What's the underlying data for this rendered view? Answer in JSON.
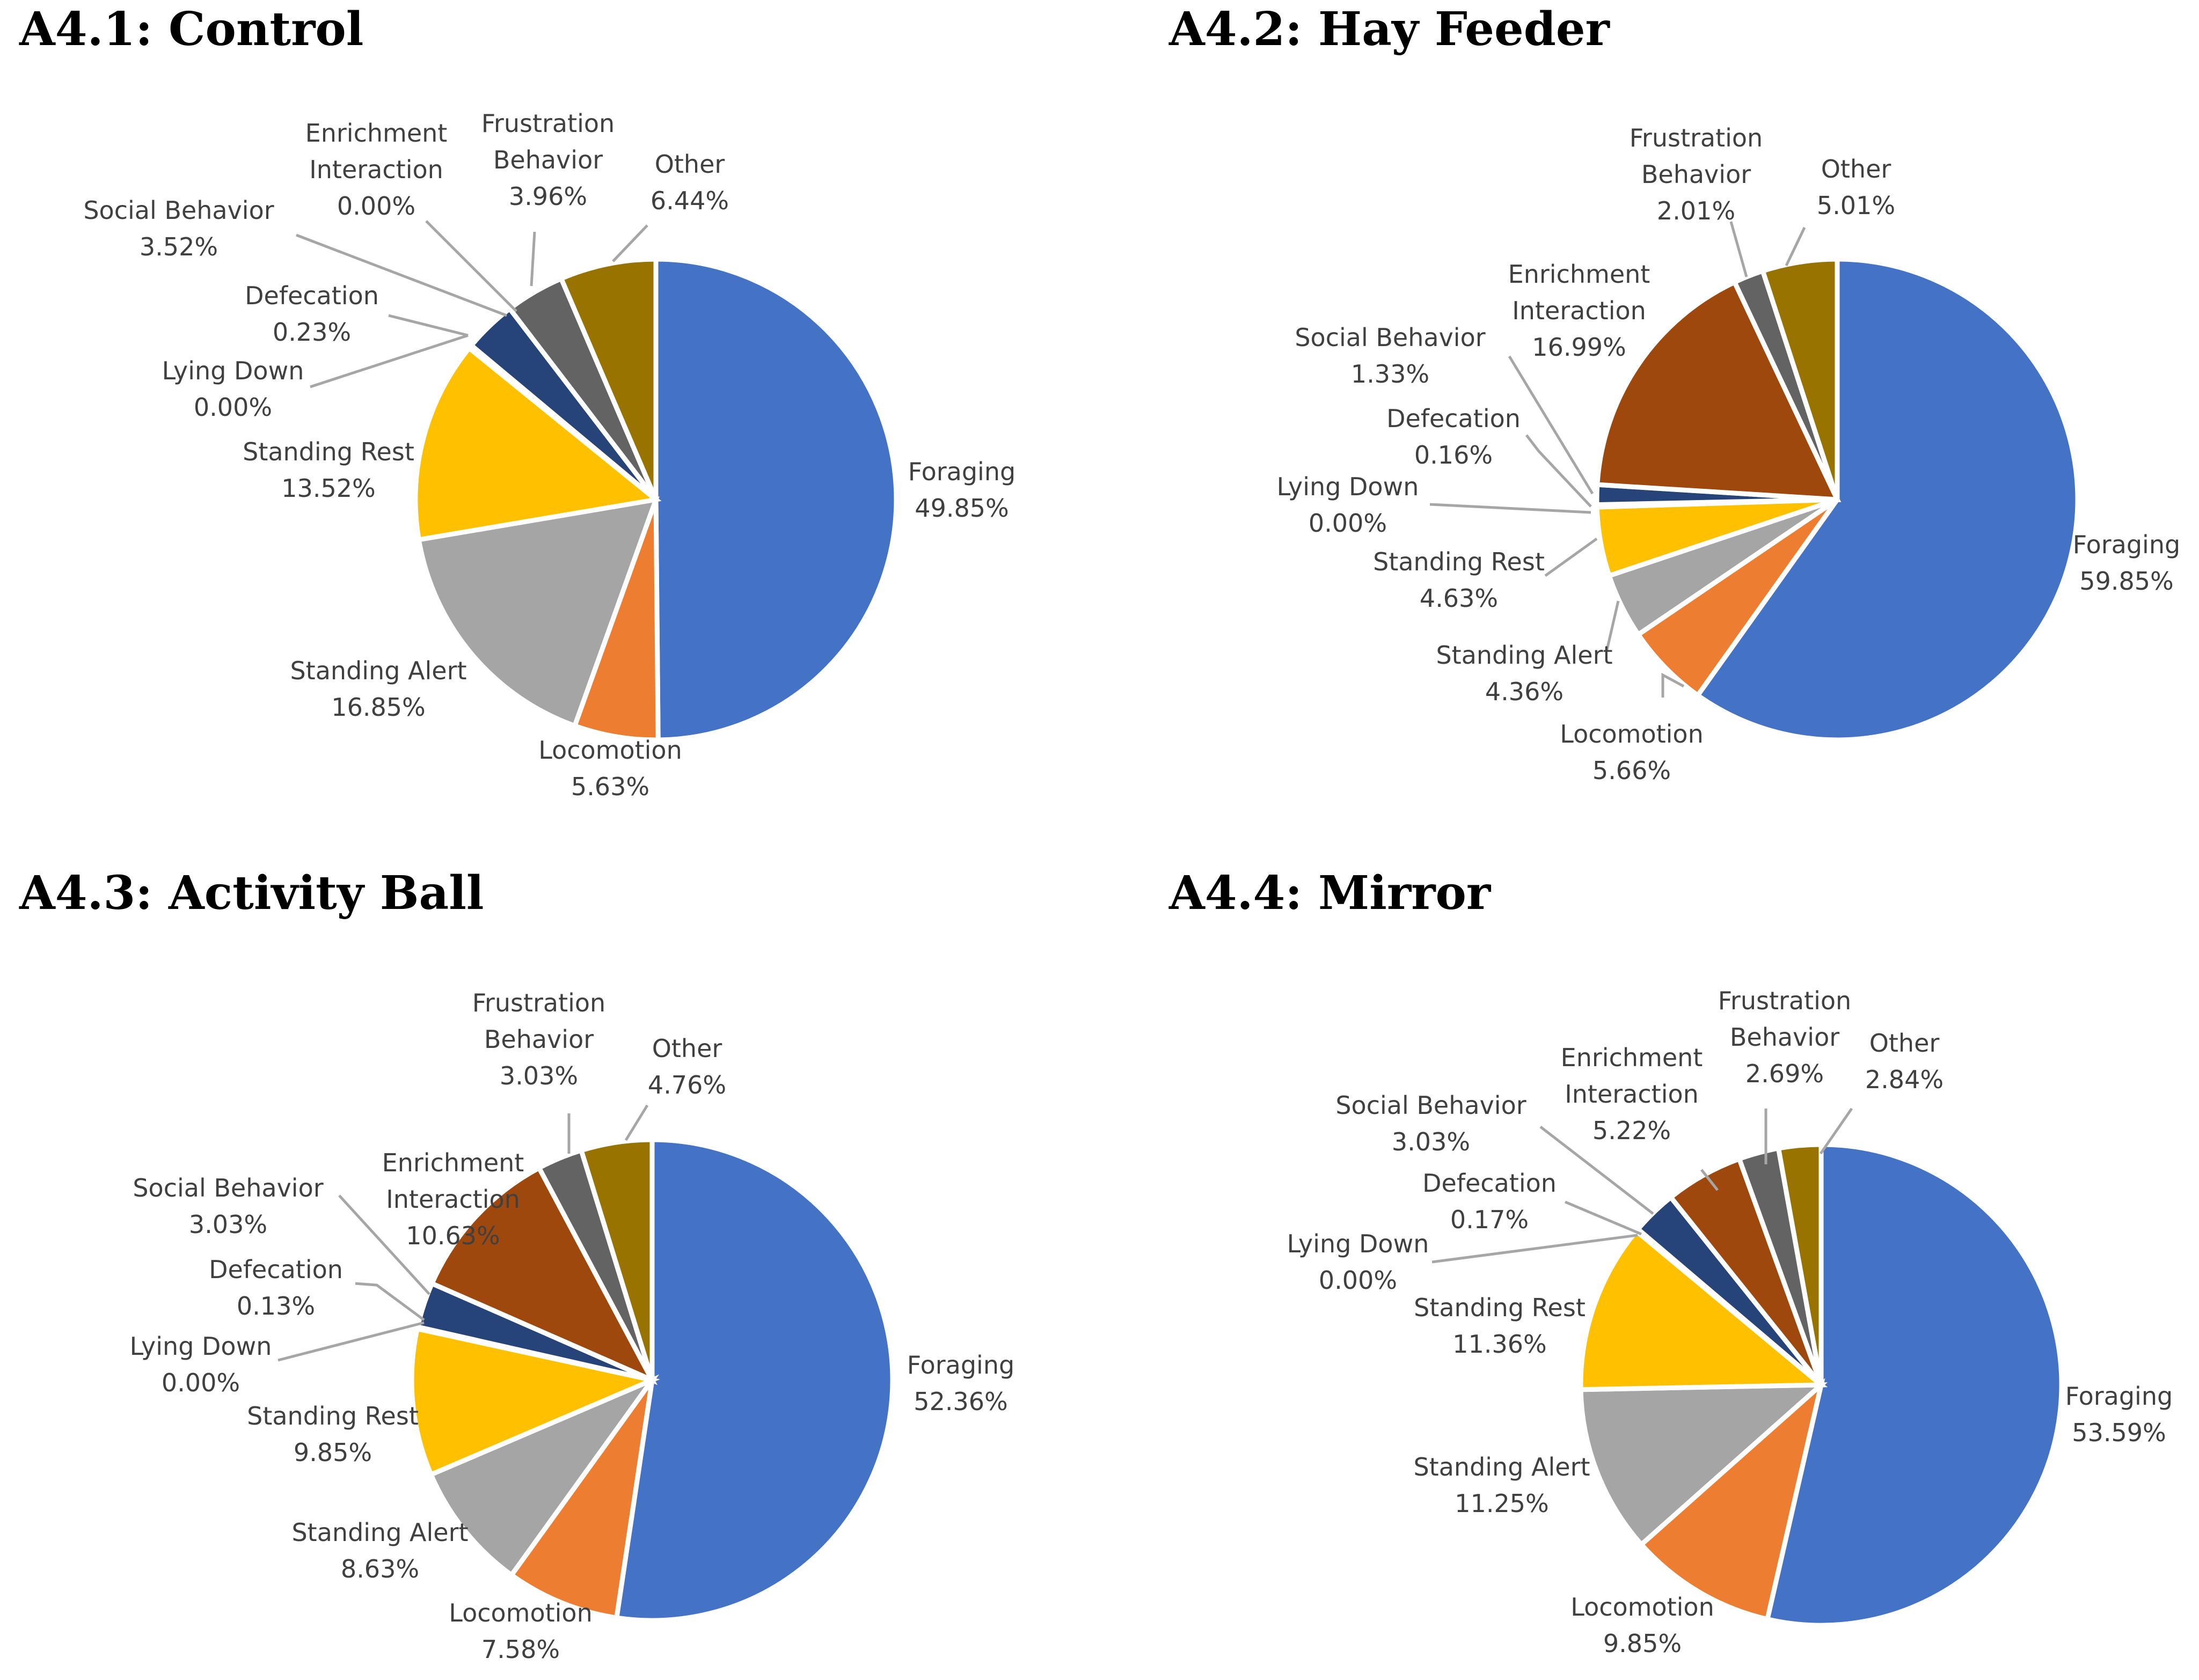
{
  "chart_data": [
    {
      "type": "pie",
      "title": "A4.1: Control",
      "slices": [
        {
          "name": "Foraging",
          "value": 49.85,
          "label": "49.85%",
          "color": "#4472C4"
        },
        {
          "name": "Locomotion",
          "value": 5.63,
          "label": "5.63%",
          "color": "#ED7D31"
        },
        {
          "name": "Standing Alert",
          "value": 16.85,
          "label": "16.85%",
          "color": "#A5A5A5"
        },
        {
          "name": "Standing Rest",
          "value": 13.52,
          "label": "13.52%",
          "color": "#FFC000"
        },
        {
          "name": "Lying Down",
          "value": 0.0,
          "label": "0.00%",
          "color": "#5B9BD5"
        },
        {
          "name": "Defecation",
          "value": 0.23,
          "label": "0.23%",
          "color": "#70AD47"
        },
        {
          "name": "Social Behavior",
          "value": 3.52,
          "label": "3.52%",
          "color": "#264478"
        },
        {
          "name": "Enrichment Interaction",
          "value": 0.0,
          "label": "0.00%",
          "color": "#9E480E"
        },
        {
          "name": "Frustration Behavior",
          "value": 3.96,
          "label": "3.96%",
          "color": "#636363"
        },
        {
          "name": "Other",
          "value": 6.44,
          "label": "6.44%",
          "color": "#997300"
        }
      ]
    },
    {
      "type": "pie",
      "title": "A4.2: Hay Feeder",
      "slices": [
        {
          "name": "Foraging",
          "value": 59.85,
          "label": "59.85%",
          "color": "#4472C4"
        },
        {
          "name": "Locomotion",
          "value": 5.66,
          "label": "5.66%",
          "color": "#ED7D31"
        },
        {
          "name": "Standing Alert",
          "value": 4.36,
          "label": "4.36%",
          "color": "#A5A5A5"
        },
        {
          "name": "Standing Rest",
          "value": 4.63,
          "label": "4.63%",
          "color": "#FFC000"
        },
        {
          "name": "Lying Down",
          "value": 0.0,
          "label": "0.00%",
          "color": "#5B9BD5"
        },
        {
          "name": "Defecation",
          "value": 0.16,
          "label": "0.16%",
          "color": "#70AD47"
        },
        {
          "name": "Social Behavior",
          "value": 1.33,
          "label": "1.33%",
          "color": "#264478"
        },
        {
          "name": "Enrichment Interaction",
          "value": 16.99,
          "label": "16.99%",
          "color": "#9E480E"
        },
        {
          "name": "Frustration Behavior",
          "value": 2.01,
          "label": "2.01%",
          "color": "#636363"
        },
        {
          "name": "Other",
          "value": 5.01,
          "label": "5.01%",
          "color": "#997300"
        }
      ]
    },
    {
      "type": "pie",
      "title": "A4.3: Activity Ball",
      "slices": [
        {
          "name": "Foraging",
          "value": 52.36,
          "label": "52.36%",
          "color": "#4472C4"
        },
        {
          "name": "Locomotion",
          "value": 7.58,
          "label": "7.58%",
          "color": "#ED7D31"
        },
        {
          "name": "Standing Alert",
          "value": 8.63,
          "label": "8.63%",
          "color": "#A5A5A5"
        },
        {
          "name": "Standing Rest",
          "value": 9.85,
          "label": "9.85%",
          "color": "#FFC000"
        },
        {
          "name": "Lying Down",
          "value": 0.0,
          "label": "0.00%",
          "color": "#5B9BD5"
        },
        {
          "name": "Defecation",
          "value": 0.13,
          "label": "0.13%",
          "color": "#70AD47"
        },
        {
          "name": "Social Behavior",
          "value": 3.03,
          "label": "3.03%",
          "color": "#264478"
        },
        {
          "name": "Enrichment Interaction",
          "value": 10.63,
          "label": "10.63%",
          "color": "#9E480E"
        },
        {
          "name": "Frustration Behavior",
          "value": 3.03,
          "label": "3.03%",
          "color": "#636363"
        },
        {
          "name": "Other",
          "value": 4.76,
          "label": "4.76%",
          "color": "#997300"
        }
      ]
    },
    {
      "type": "pie",
      "title": "A4.4: Mirror",
      "slices": [
        {
          "name": "Foraging",
          "value": 53.59,
          "label": "53.59%",
          "color": "#4472C4"
        },
        {
          "name": "Locomotion",
          "value": 9.85,
          "label": "9.85%",
          "color": "#ED7D31"
        },
        {
          "name": "Standing Alert",
          "value": 11.25,
          "label": "11.25%",
          "color": "#A5A5A5"
        },
        {
          "name": "Standing Rest",
          "value": 11.36,
          "label": "11.36%",
          "color": "#FFC000"
        },
        {
          "name": "Lying Down",
          "value": 0.0,
          "label": "0.00%",
          "color": "#5B9BD5"
        },
        {
          "name": "Defecation",
          "value": 0.17,
          "label": "0.17%",
          "color": "#70AD47"
        },
        {
          "name": "Social Behavior",
          "value": 3.03,
          "label": "3.03%",
          "color": "#264478"
        },
        {
          "name": "Enrichment Interaction",
          "value": 5.22,
          "label": "5.22%",
          "color": "#9E480E"
        },
        {
          "name": "Frustration Behavior",
          "value": 2.69,
          "label": "2.69%",
          "color": "#636363"
        },
        {
          "name": "Other",
          "value": 2.84,
          "label": "2.84%",
          "color": "#997300"
        }
      ]
    }
  ]
}
